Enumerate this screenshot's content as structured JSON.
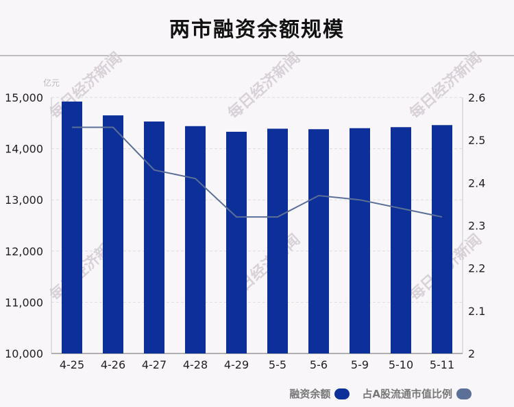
{
  "chart_data": {
    "type": "bar",
    "title": "两市融资余额规模",
    "unit_label": "亿元",
    "watermark": "每日经济新闻",
    "categories": [
      "4-25",
      "4-26",
      "4-27",
      "4-28",
      "4-29",
      "5-5",
      "5-6",
      "5-9",
      "5-10",
      "5-11"
    ],
    "series": [
      {
        "name": "融资余额",
        "type": "bar",
        "axis": "left",
        "color": "#0d2f9a",
        "values": [
          14920,
          14650,
          14530,
          14440,
          14330,
          14390,
          14380,
          14400,
          14420,
          14460
        ]
      },
      {
        "name": "占A股流通市值比例",
        "type": "line",
        "axis": "right",
        "color": "#5b6f97",
        "values": [
          2.53,
          2.53,
          2.43,
          2.41,
          2.32,
          2.32,
          2.37,
          2.36,
          2.34,
          2.32
        ]
      }
    ],
    "y_left": {
      "min": 10000,
      "max": 15000,
      "ticks": [
        10000,
        11000,
        12000,
        13000,
        14000,
        15000
      ],
      "tick_labels": [
        "10,000",
        "11,000",
        "12,000",
        "13,000",
        "14,000",
        "15,000"
      ]
    },
    "y_right": {
      "min": 2.0,
      "max": 2.6,
      "ticks": [
        2.0,
        2.1,
        2.2,
        2.3,
        2.4,
        2.5,
        2.6
      ],
      "tick_labels": [
        "2",
        "2.1",
        "2.2",
        "2.3",
        "2.4",
        "2.5",
        "2.6"
      ]
    },
    "grid": true,
    "legend_position": "bottom-right"
  }
}
